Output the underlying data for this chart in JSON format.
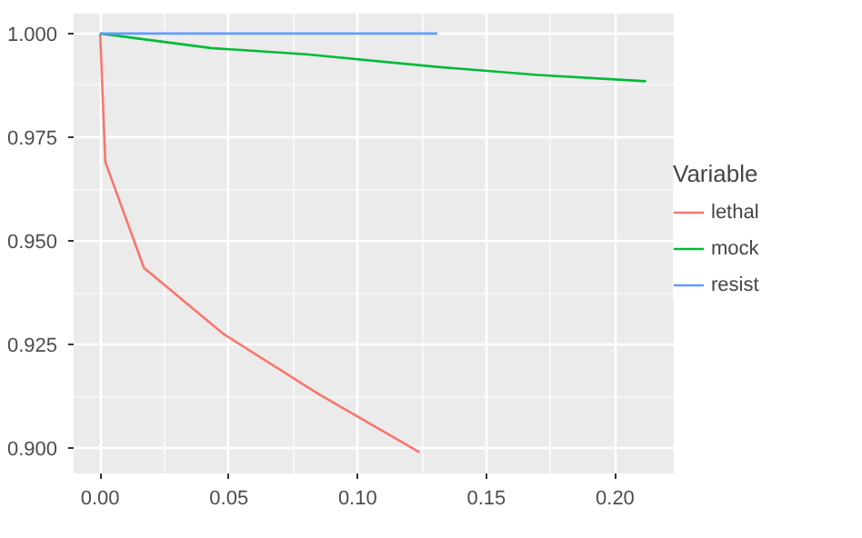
{
  "chart_data": {
    "type": "line",
    "legend_title": "Variable",
    "legend": "right",
    "grid": true,
    "xlim": [
      -0.0103,
      0.2228
    ],
    "ylim": [
      0.8939,
      1.0048
    ],
    "xticks": [
      {
        "value": 0,
        "label": "0.00"
      },
      {
        "value": 0.05,
        "label": "0.05"
      },
      {
        "value": 0.1,
        "label": "0.10"
      },
      {
        "value": 0.15,
        "label": "0.15"
      },
      {
        "value": 0.2,
        "label": "0.20"
      }
    ],
    "yticks": [
      {
        "value": 0.9,
        "label": "0.900"
      },
      {
        "value": 0.925,
        "label": "0.925"
      },
      {
        "value": 0.95,
        "label": "0.950"
      },
      {
        "value": 0.975,
        "label": "0.975"
      },
      {
        "value": 1.0,
        "label": "1.000"
      }
    ],
    "series": [
      {
        "name": "lethal",
        "color": "#f8766d",
        "x": [
          0,
          0.002,
          0.017,
          0.048,
          0.085,
          0.124
        ],
        "values": [
          1.0,
          0.969,
          0.9435,
          0.9275,
          0.913,
          0.899
        ]
      },
      {
        "name": "mock",
        "color": "#00ba38",
        "x": [
          0,
          0.043,
          0.08,
          0.13,
          0.17,
          0.212
        ],
        "values": [
          1.0,
          0.9965,
          0.995,
          0.992,
          0.99,
          0.9885
        ]
      },
      {
        "name": "resist",
        "color": "#619cff",
        "x": [
          0,
          0.131
        ],
        "values": [
          1.0,
          1.0
        ]
      }
    ]
  }
}
